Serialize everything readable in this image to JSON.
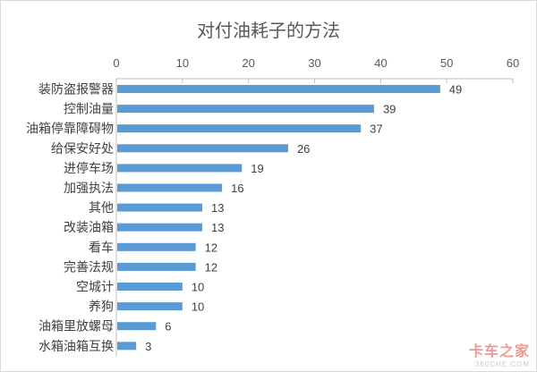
{
  "chart_data": {
    "type": "bar",
    "orientation": "horizontal",
    "title": "对付油耗子的方法",
    "xlabel": "",
    "ylabel": "",
    "xlim": [
      0,
      60
    ],
    "x_ticks": [
      0,
      10,
      20,
      30,
      40,
      50,
      60
    ],
    "x_axis_position": "top",
    "grid": false,
    "bar_color": "#5b9bd5",
    "categories": [
      "装防盗报警器",
      "控制油量",
      "油箱停靠障碍物",
      "给保安好处",
      "进停车场",
      "加强执法",
      "其他",
      "改装油箱",
      "看车",
      "完善法规",
      "空城计",
      "养狗",
      "油箱里放螺母",
      "水箱油箱互换"
    ],
    "values": [
      49,
      39,
      37,
      26,
      19,
      16,
      13,
      13,
      12,
      12,
      10,
      10,
      6,
      3
    ],
    "data_labels": [
      "49",
      "39",
      "37",
      "26",
      "19",
      "16",
      "13",
      "13",
      "12",
      "12",
      "10",
      "10",
      "6",
      "3"
    ]
  },
  "watermark": {
    "main": "卡车之家",
    "sub": "360CHE.COM"
  }
}
